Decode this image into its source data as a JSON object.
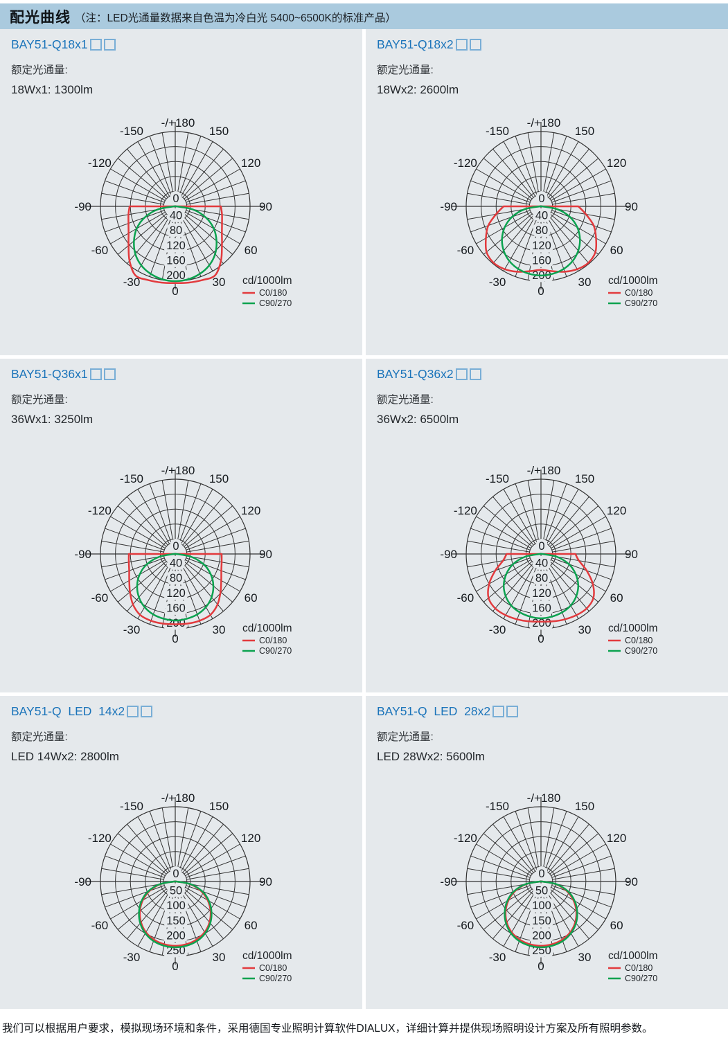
{
  "header": {
    "title": "配光曲线",
    "note": "（注：LED光通量数据来自色温为冷白光 5400~6500K的标准产品）"
  },
  "footer": {
    "text": "我们可以根据用户要求，模拟现场环境和条件，采用德国专业照明计算软件DIALUX，详细计算并提供现场照明设计方案及所有照明参数。"
  },
  "colors": {
    "header_bg": "#aacade",
    "panel_bg": "#e5e9ec",
    "title_blue": "#1b74ba",
    "box_blue": "#79aed6",
    "text_dark": "#33373b",
    "grid": "#333333",
    "c0_red": "#e23a3d",
    "c90_green": "#0ba24f"
  },
  "legend": {
    "unit": "cd/1000lm",
    "items": [
      {
        "label": "C0/180",
        "color_key": "c0_red"
      },
      {
        "label": "C90/270",
        "color_key": "c90_green"
      }
    ]
  },
  "panels": [
    {
      "model": "BAY51-Q18x1",
      "flux_label": "额定光通量:",
      "spec": "18Wx1: 1300lm"
    },
    {
      "model": "BAY51-Q18x2",
      "flux_label": "额定光通量:",
      "spec": "18Wx2: 2600lm"
    },
    {
      "model": "BAY51-Q36x1",
      "flux_label": "额定光通量:",
      "spec": "36Wx1: 3250lm"
    },
    {
      "model": "BAY51-Q36x2",
      "flux_label": "额定光通量:",
      "spec": "36Wx2: 6500lm"
    },
    {
      "model": "BAY51-Q  LED  14x2",
      "flux_label": "额定光通量:",
      "spec": "LED 14Wx2: 2800lm"
    },
    {
      "model": "BAY51-Q  LED  28x2",
      "flux_label": "额定光通量:",
      "spec": "LED 28Wx2: 5600lm"
    }
  ],
  "chart_defaults": {
    "type": "polar",
    "angle_step_deg": 10,
    "center_label": "0",
    "angle_labels": [
      {
        "a": 180,
        "t": "-/+180"
      },
      {
        "a": -150,
        "t": "-150"
      },
      {
        "a": 150,
        "t": "150"
      },
      {
        "a": -120,
        "t": "-120"
      },
      {
        "a": 120,
        "t": "120"
      },
      {
        "a": -90,
        "t": "-90"
      },
      {
        "a": 90,
        "t": "90"
      },
      {
        "a": -60,
        "t": "-60"
      },
      {
        "a": 60,
        "t": "60"
      },
      {
        "a": -30,
        "t": "-30"
      },
      {
        "a": 30,
        "t": "30"
      },
      {
        "a": 0,
        "t": "0"
      }
    ]
  },
  "chart_data": [
    {
      "type": "polar",
      "ring_values": [
        40,
        80,
        120,
        160,
        200
      ],
      "ring_max": 200,
      "series": [
        {
          "name": "C0/180",
          "color_key": "c0_red",
          "angles_deg_from_nadir": [
            0,
            10,
            20,
            30,
            40,
            50,
            60,
            70,
            80,
            90
          ],
          "r": [
            205,
            207,
            210,
            213,
            190,
            163,
            144,
            133,
            127,
            122
          ],
          "mirrored": true,
          "close_across_horizontal": true
        },
        {
          "name": "C90/270",
          "color_key": "c90_green",
          "angles_deg_from_nadir": [
            0,
            10,
            20,
            30,
            40,
            50,
            60,
            70,
            80,
            90
          ],
          "r": [
            200,
            198,
            192,
            182,
            166,
            144,
            119,
            87,
            48,
            3
          ],
          "mirrored": true,
          "close_across_horizontal": true
        }
      ]
    },
    {
      "type": "polar",
      "ring_values": [
        40,
        80,
        120,
        160,
        200
      ],
      "ring_max": 200,
      "series": [
        {
          "name": "C0/180",
          "color_key": "c0_red",
          "angles_deg_from_nadir": [
            0,
            10,
            20,
            30,
            40,
            50,
            60,
            70,
            80,
            90
          ],
          "r": [
            170,
            176,
            186,
            194,
            197,
            190,
            170,
            150,
            122,
            100
          ],
          "mirrored": true,
          "close_across_horizontal": true
        },
        {
          "name": "C90/270",
          "color_key": "c90_green",
          "angles_deg_from_nadir": [
            0,
            10,
            20,
            30,
            40,
            50,
            60,
            70,
            80,
            90
          ],
          "r": [
            185,
            183,
            178,
            169,
            155,
            136,
            112,
            82,
            44,
            3
          ],
          "mirrored": true,
          "close_across_horizontal": true
        }
      ]
    },
    {
      "type": "polar",
      "ring_values": [
        40,
        80,
        120,
        160,
        200
      ],
      "ring_max": 200,
      "series": [
        {
          "name": "C0/180",
          "color_key": "c0_red",
          "angles_deg_from_nadir": [
            0,
            10,
            20,
            30,
            40,
            50,
            60,
            70,
            80,
            90
          ],
          "r": [
            188,
            189,
            190,
            188,
            176,
            158,
            142,
            131,
            126,
            124
          ],
          "mirrored": true,
          "close_across_horizontal": true
        },
        {
          "name": "C90/270",
          "color_key": "c90_green",
          "angles_deg_from_nadir": [
            0,
            10,
            20,
            30,
            40,
            50,
            60,
            70,
            80,
            90
          ],
          "r": [
            178,
            176,
            172,
            164,
            151,
            133,
            110,
            81,
            43,
            3
          ],
          "mirrored": true,
          "close_across_horizontal": true
        }
      ]
    },
    {
      "type": "polar",
      "ring_values": [
        40,
        80,
        120,
        160,
        200
      ],
      "ring_max": 200,
      "series": [
        {
          "name": "C0/180",
          "color_key": "c0_red",
          "angles_deg_from_nadir": [
            0,
            10,
            20,
            30,
            40,
            50,
            60,
            70,
            80,
            90
          ],
          "r": [
            181,
            183,
            186,
            189,
            190,
            183,
            160,
            130,
            103,
            92
          ],
          "mirrored": true,
          "close_across_horizontal": true
        },
        {
          "name": "C90/270",
          "color_key": "c90_green",
          "angles_deg_from_nadir": [
            0,
            10,
            20,
            30,
            40,
            50,
            60,
            70,
            80,
            90
          ],
          "r": [
            172,
            170,
            166,
            159,
            147,
            130,
            107,
            79,
            43,
            3
          ],
          "mirrored": true,
          "close_across_horizontal": true
        }
      ]
    },
    {
      "type": "polar",
      "ring_values": [
        50,
        100,
        150,
        200,
        250
      ],
      "ring_max": 250,
      "series": [
        {
          "name": "C0/180",
          "color_key": "c0_red",
          "angles_deg_from_nadir": [
            0,
            10,
            20,
            30,
            40,
            50,
            60,
            70,
            80,
            90
          ],
          "r": [
            215,
            213,
            207,
            196,
            178,
            154,
            125,
            91,
            50,
            4
          ],
          "mirrored": true,
          "close_across_horizontal": true
        },
        {
          "name": "C90/270",
          "color_key": "c90_green",
          "angles_deg_from_nadir": [
            0,
            10,
            20,
            30,
            40,
            50,
            60,
            70,
            80,
            90
          ],
          "r": [
            220,
            218,
            212,
            200,
            182,
            158,
            130,
            96,
            53,
            4
          ],
          "mirrored": true,
          "close_across_horizontal": true
        }
      ]
    },
    {
      "type": "polar",
      "ring_values": [
        50,
        100,
        150,
        200,
        250
      ],
      "ring_max": 250,
      "series": [
        {
          "name": "C0/180",
          "color_key": "c0_red",
          "angles_deg_from_nadir": [
            0,
            10,
            20,
            30,
            40,
            50,
            60,
            70,
            80,
            90
          ],
          "r": [
            215,
            213,
            207,
            196,
            178,
            154,
            125,
            91,
            50,
            4
          ],
          "mirrored": true,
          "close_across_horizontal": true
        },
        {
          "name": "C90/270",
          "color_key": "c90_green",
          "angles_deg_from_nadir": [
            0,
            10,
            20,
            30,
            40,
            50,
            60,
            70,
            80,
            90
          ],
          "r": [
            220,
            218,
            212,
            200,
            182,
            158,
            130,
            96,
            53,
            4
          ],
          "mirrored": true,
          "close_across_horizontal": true
        }
      ]
    }
  ]
}
